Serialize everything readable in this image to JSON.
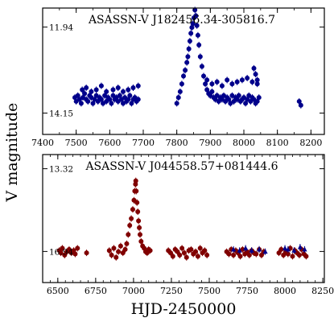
{
  "figure": {
    "ylabel": "V magnitude",
    "xlabel": "HJD-2450000"
  },
  "chart_data": [
    {
      "type": "scatter",
      "title": "ASASSN-V J182456.34-305816.7",
      "xlabel": "HJD-2450000",
      "ylabel": "V magnitude",
      "xlim": [
        7400,
        8240
      ],
      "ylim": [
        14.7,
        11.45
      ],
      "y_inverted": true,
      "x_ticks": [
        7400,
        7500,
        7600,
        7700,
        7800,
        7900,
        8000,
        8100,
        8200
      ],
      "y_ticks": [
        11.94,
        14.15
      ],
      "grid": false,
      "series": [
        {
          "color": "#00008b",
          "x": [
            7496,
            7500,
            7505,
            7510,
            7515,
            7520,
            7525,
            7530,
            7535,
            7540,
            7545,
            7550,
            7555,
            7560,
            7565,
            7570,
            7575,
            7580,
            7585,
            7590,
            7595,
            7600,
            7605,
            7610,
            7615,
            7620,
            7625,
            7630,
            7635,
            7640,
            7645,
            7650,
            7655,
            7660,
            7665,
            7670,
            7675,
            7680,
            7685,
            7518,
            7530,
            7545,
            7560,
            7575,
            7590,
            7610,
            7625,
            7640,
            7655,
            7670,
            7685,
            7800,
            7805,
            7810,
            7815,
            7820,
            7825,
            7830,
            7833,
            7836,
            7839,
            7842,
            7845,
            7848,
            7851,
            7854,
            7857,
            7860,
            7863,
            7866,
            7870,
            7875,
            7880,
            7885,
            7890,
            7895,
            7900,
            7905,
            7910,
            7915,
            7920,
            7925,
            7930,
            7935,
            7940,
            7945,
            7950,
            7955,
            7960,
            7965,
            7970,
            7975,
            7980,
            7985,
            7990,
            7995,
            8000,
            8005,
            8010,
            8015,
            8020,
            8025,
            8030,
            8035,
            8040,
            8045,
            7890,
            7905,
            7920,
            7935,
            7950,
            7965,
            7980,
            7995,
            8010,
            8025,
            8040,
            8030,
            8035,
            8040,
            8165,
            8170
          ],
          "y": [
            13.75,
            13.85,
            13.7,
            13.8,
            13.9,
            13.75,
            13.65,
            13.8,
            13.85,
            13.7,
            13.75,
            13.9,
            13.8,
            13.7,
            13.85,
            13.75,
            13.8,
            13.9,
            13.7,
            13.85,
            13.75,
            13.8,
            13.9,
            13.7,
            13.8,
            13.75,
            13.85,
            13.7,
            13.8,
            13.9,
            13.75,
            13.85,
            13.8,
            13.7,
            13.9,
            13.8,
            13.75,
            13.85,
            13.8,
            13.55,
            13.5,
            13.6,
            13.55,
            13.45,
            13.6,
            13.55,
            13.5,
            13.6,
            13.55,
            13.5,
            13.45,
            13.9,
            13.75,
            13.6,
            13.4,
            13.2,
            13.05,
            12.85,
            12.7,
            12.5,
            12.3,
            12.1,
            11.95,
            11.85,
            11.7,
            11.5,
            11.65,
            11.9,
            12.15,
            12.4,
            12.7,
            12.95,
            13.2,
            13.4,
            13.55,
            13.65,
            13.7,
            13.6,
            13.75,
            13.8,
            13.7,
            13.85,
            13.75,
            13.8,
            13.7,
            13.85,
            13.75,
            13.8,
            13.9,
            13.7,
            13.85,
            13.75,
            13.8,
            13.7,
            13.85,
            13.8,
            13.75,
            13.9,
            13.8,
            13.7,
            13.85,
            13.75,
            13.8,
            13.9,
            13.85,
            13.75,
            13.3,
            13.4,
            13.35,
            13.45,
            13.3,
            13.4,
            13.35,
            13.3,
            13.25,
            13.35,
            13.4,
            13.0,
            13.15,
            13.3,
            13.85,
            13.95
          ]
        }
      ]
    },
    {
      "type": "scatter",
      "title": "ASASSN-V J044558.57+081444.6",
      "xlabel": "HJD-2450000",
      "ylabel": "V magnitude",
      "xlim": [
        6400,
        8260
      ],
      "ylim": [
        18.3,
        12.7
      ],
      "y_inverted": true,
      "x_ticks": [
        6500,
        6750,
        7000,
        7250,
        7500,
        7750,
        8000,
        8250
      ],
      "y_ticks": [
        13.32,
        16.94
      ],
      "grid": false,
      "series": [
        {
          "color": "#800000",
          "x": [
            6510,
            6520,
            6530,
            6545,
            6560,
            6575,
            6590,
            6605,
            6615,
            6630,
            6690,
            6840,
            6855,
            6870,
            6885,
            6900,
            6915,
            6930,
            6945,
            6955,
            6965,
            6975,
            6985,
            6995,
            7003,
            7008,
            7013,
            7018,
            7023,
            7028,
            7033,
            7038,
            7043,
            7050,
            7060,
            7070,
            7080,
            7090,
            7100,
            7110,
            7015,
            7230,
            7245,
            7260,
            7275,
            7290,
            7305,
            7320,
            7335,
            7350,
            7365,
            7380,
            7395,
            7410,
            7425,
            7440,
            7455,
            7470,
            7485,
            7615,
            7630,
            7645,
            7660,
            7675,
            7690,
            7705,
            7720,
            7735,
            7750,
            7765,
            7780,
            7795,
            7810,
            7830,
            7845,
            7860,
            7960,
            7975,
            7990,
            8005,
            8020,
            8035,
            8050,
            8065,
            8080,
            8095,
            8110,
            8125,
            8140
          ],
          "y": [
            16.9,
            17.0,
            16.8,
            17.1,
            16.95,
            16.85,
            17.0,
            16.9,
            17.05,
            16.8,
            17.0,
            16.9,
            17.1,
            16.8,
            17.2,
            16.95,
            16.7,
            17.0,
            16.85,
            16.6,
            16.2,
            15.8,
            15.5,
            15.1,
            14.7,
            14.3,
            14.0,
            14.3,
            14.8,
            15.2,
            15.6,
            15.9,
            16.2,
            16.5,
            16.7,
            16.8,
            16.95,
            17.0,
            16.85,
            16.9,
            13.85,
            16.9,
            17.0,
            17.15,
            16.85,
            16.95,
            17.1,
            16.8,
            17.0,
            17.2,
            16.9,
            16.85,
            17.05,
            16.95,
            17.15,
            16.8,
            17.0,
            16.9,
            17.1,
            16.95,
            17.05,
            16.85,
            17.1,
            16.9,
            17.0,
            17.15,
            16.85,
            17.05,
            16.95,
            17.1,
            16.9,
            17.0,
            17.05,
            16.85,
            17.1,
            16.95,
            17.0,
            16.85,
            17.1,
            16.95,
            17.05,
            16.8,
            17.15,
            16.9,
            17.0,
            17.1,
            16.85,
            17.05,
            17.15
          ]
        },
        {
          "color": "#00008b",
          "x": [
            7660,
            7700,
            7740,
            7780,
            7830,
            7870,
            8000,
            8020,
            8060,
            8100,
            8130
          ],
          "y": [
            16.85,
            16.9,
            16.8,
            16.9,
            16.85,
            16.95,
            16.8,
            16.85,
            16.9,
            16.75,
            16.85
          ]
        }
      ]
    }
  ]
}
